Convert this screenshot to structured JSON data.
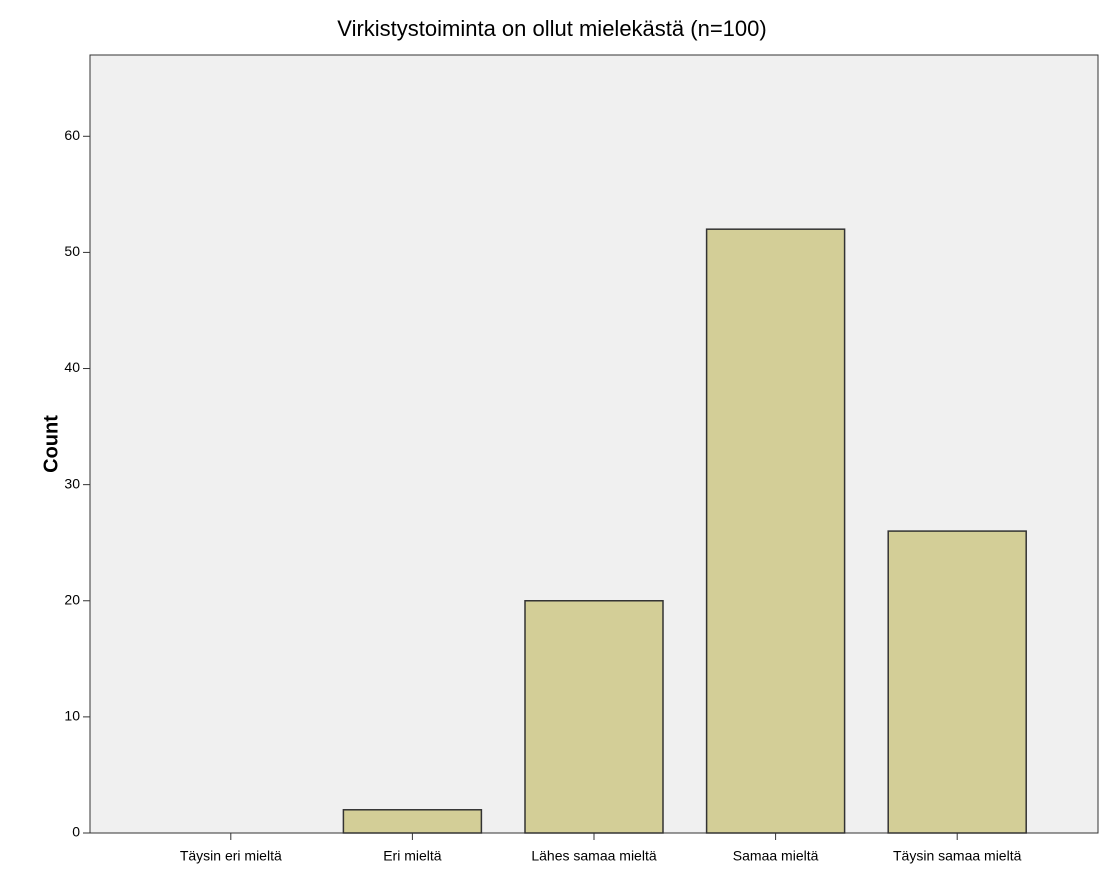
{
  "chart_data": {
    "type": "bar",
    "title": "Virkistystoiminta on ollut mielekästä (n=100)",
    "y_label": "Count",
    "categories": [
      "Täysin eri mieltä",
      "Eri mieltä",
      "Lähes samaa mieltä",
      "Samaa mieltä",
      "Täysin samaa mieltä"
    ],
    "values": [
      0,
      2,
      20,
      52,
      26
    ],
    "color": "#d3ce97",
    "ylim": [
      0,
      67
    ],
    "yticks": [
      0,
      10,
      20,
      30,
      40,
      50,
      60
    ],
    "grid": false
  }
}
